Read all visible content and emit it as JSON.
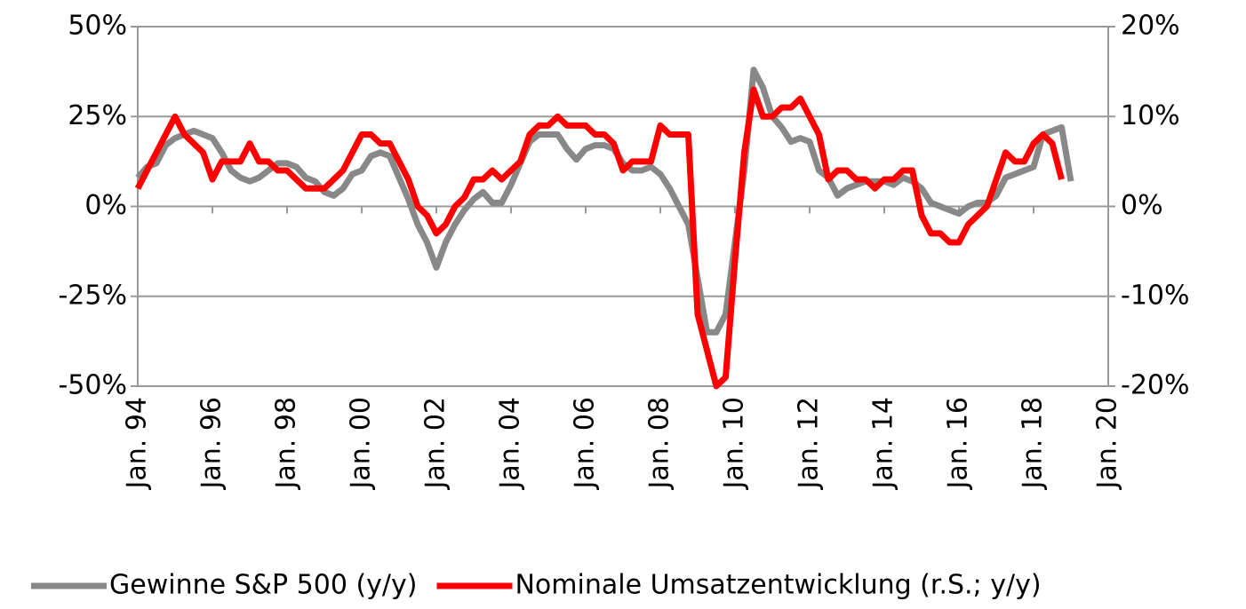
{
  "chart_data": {
    "type": "line",
    "categories": [
      "Jan. 94",
      null,
      null,
      null,
      null,
      null,
      null,
      null,
      "Jan. 96",
      null,
      null,
      null,
      null,
      null,
      null,
      null,
      "Jan. 98",
      null,
      null,
      null,
      null,
      null,
      null,
      null,
      "Jan. 00",
      null,
      null,
      null,
      null,
      null,
      null,
      null,
      "Jan. 02",
      null,
      null,
      null,
      null,
      null,
      null,
      null,
      "Jan. 04",
      null,
      null,
      null,
      null,
      null,
      null,
      null,
      "Jan. 06",
      null,
      null,
      null,
      null,
      null,
      null,
      null,
      "Jan. 08",
      null,
      null,
      null,
      null,
      null,
      null,
      null,
      "Jan. 10",
      null,
      null,
      null,
      null,
      null,
      null,
      null,
      "Jan. 12",
      null,
      null,
      null,
      null,
      null,
      null,
      null,
      "Jan. 14",
      null,
      null,
      null,
      null,
      null,
      null,
      null,
      "Jan. 16",
      null,
      null,
      null,
      null,
      null,
      null,
      null,
      "Jan. 18",
      null,
      null,
      null,
      null,
      null,
      null,
      null,
      "Jan. 20"
    ],
    "series": [
      {
        "name": "Gewinne S&P 500 (y/y)",
        "color": "#888888",
        "axis": "y",
        "values": [
          8,
          11,
          12,
          17,
          19,
          20,
          21,
          20,
          19,
          15,
          10,
          8,
          7,
          8,
          10,
          12,
          12,
          11,
          8,
          7,
          4,
          3,
          5,
          9,
          10,
          14,
          15,
          14,
          8,
          2,
          -5,
          -10,
          -17,
          -10,
          -5,
          -1,
          2,
          4,
          1,
          1,
          6,
          12,
          18,
          20,
          20,
          20,
          16,
          13,
          16,
          17,
          17,
          16,
          12,
          10,
          10,
          11,
          9,
          5,
          0,
          -5,
          -20,
          -35,
          -35,
          -30,
          -10,
          10,
          38,
          33,
          25,
          22,
          18,
          19,
          18,
          10,
          8,
          3,
          5,
          6,
          7,
          7,
          7,
          6,
          8,
          7,
          5,
          1,
          0,
          -1,
          -2,
          0,
          1,
          1,
          3,
          8,
          9,
          10,
          11,
          20,
          21,
          22,
          7,
          null,
          null,
          null,
          null
        ]
      },
      {
        "name": "Nominale Umsatzentwicklung (r.S.; y/y)",
        "color": "#ff0000",
        "axis": "y2",
        "values": [
          2,
          4,
          6,
          8,
          10,
          8,
          7,
          6,
          3,
          5,
          5,
          5,
          7,
          5,
          5,
          4,
          4,
          3,
          2,
          2,
          2,
          3,
          4,
          6,
          8,
          8,
          7,
          7,
          5,
          3,
          0,
          -1,
          -3,
          -2,
          0,
          1,
          3,
          3,
          4,
          3,
          4,
          5,
          8,
          9,
          9,
          10,
          9,
          9,
          9,
          8,
          8,
          7,
          4,
          5,
          5,
          5,
          9,
          8,
          8,
          8,
          -12,
          -16,
          -20,
          -19,
          -6,
          6,
          13,
          10,
          10,
          11,
          11,
          12,
          10,
          8,
          3,
          4,
          4,
          3,
          3,
          2,
          3,
          3,
          4,
          4,
          -1,
          -3,
          -3,
          -4,
          -4,
          -2,
          -1,
          0,
          3,
          6,
          5,
          5,
          7,
          8,
          7,
          3,
          null,
          null,
          null,
          null,
          null
        ]
      }
    ],
    "ylim": [
      -50,
      50
    ],
    "yticks": [
      {
        "value": -50,
        "label": "-50%"
      },
      {
        "value": -25,
        "label": "-25%"
      },
      {
        "value": 0,
        "label": "0%"
      },
      {
        "value": 25,
        "label": "25%"
      },
      {
        "value": 50,
        "label": "50%"
      }
    ],
    "y2lim": [
      -20,
      20
    ],
    "y2ticks": [
      {
        "value": -20,
        "label": "-20%"
      },
      {
        "value": -10,
        "label": "-10%"
      },
      {
        "value": 0,
        "label": "0%"
      },
      {
        "value": 10,
        "label": "10%"
      },
      {
        "value": 20,
        "label": "20%"
      }
    ],
    "grid": true,
    "legend": "bottom"
  }
}
